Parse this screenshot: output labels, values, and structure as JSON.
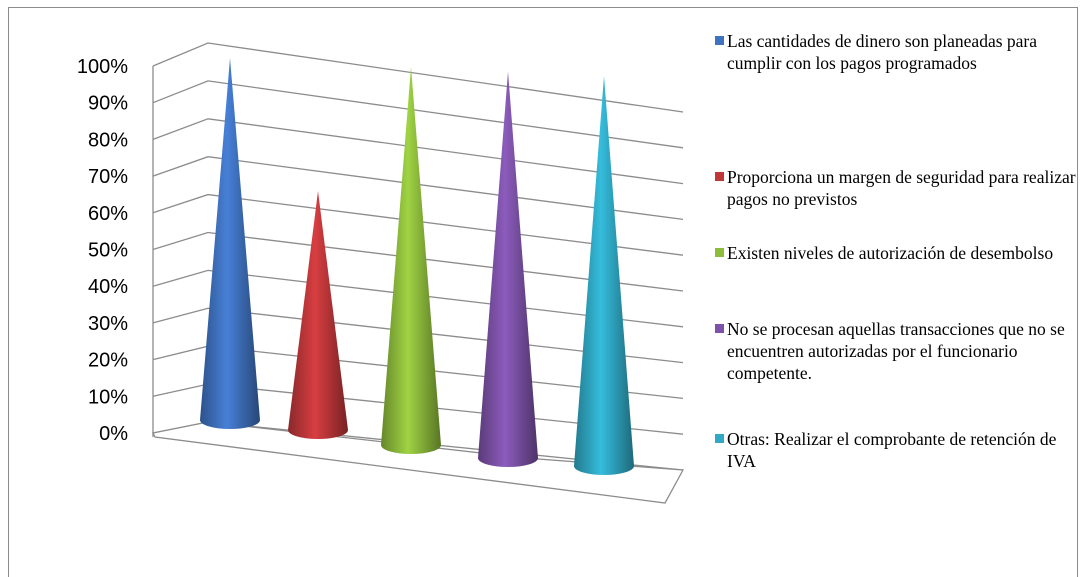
{
  "chart_data": {
    "type": "bar",
    "subtype": "3d-cone",
    "title": "",
    "xlabel": "",
    "ylabel": "",
    "ylim": [
      0,
      1
    ],
    "y_ticks": [
      "0%",
      "10%",
      "20%",
      "30%",
      "40%",
      "50%",
      "60%",
      "70%",
      "80%",
      "90%",
      "100%"
    ],
    "grid": true,
    "legend_position": "right",
    "series": [
      {
        "name": "Las cantidades de dinero son planeadas para cumplir con los pagos programados",
        "value": 1.0,
        "color": "#3f72c0"
      },
      {
        "name": "Proporciona un margen de seguridad para realizar pagos no previstos",
        "value": 0.65,
        "color": "#c0373a"
      },
      {
        "name": "Existen niveles de autorización de desembolso",
        "value": 1.0,
        "color": "#8ebc3c"
      },
      {
        "name": "No se procesan aquellas transacciones que no se encuentren autorizadas por el funcionario competente.",
        "value": 1.0,
        "color": "#7d52a8"
      },
      {
        "name": "Otras: Realizar el comprobante de retención de IVA",
        "value": 1.0,
        "color": "#2fa9c4"
      }
    ]
  }
}
